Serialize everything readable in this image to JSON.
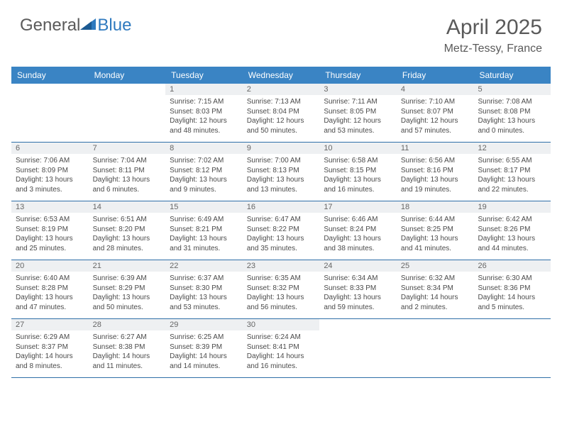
{
  "brand": {
    "part1": "General",
    "part2": "Blue"
  },
  "title": "April 2025",
  "location": "Metz-Tessy, France",
  "colors": {
    "header_bg": "#3a84c4",
    "header_text": "#ffffff",
    "daynum_bg": "#eef0f2",
    "row_border": "#2f6fa8",
    "body_text": "#4a4a4a",
    "title_text": "#5a5a5a",
    "brand_blue": "#2f7abf"
  },
  "day_headers": [
    "Sunday",
    "Monday",
    "Tuesday",
    "Wednesday",
    "Thursday",
    "Friday",
    "Saturday"
  ],
  "weeks": [
    [
      {
        "num": "",
        "sunrise": "",
        "sunset": "",
        "daylight": ""
      },
      {
        "num": "",
        "sunrise": "",
        "sunset": "",
        "daylight": ""
      },
      {
        "num": "1",
        "sunrise": "Sunrise: 7:15 AM",
        "sunset": "Sunset: 8:03 PM",
        "daylight": "Daylight: 12 hours and 48 minutes."
      },
      {
        "num": "2",
        "sunrise": "Sunrise: 7:13 AM",
        "sunset": "Sunset: 8:04 PM",
        "daylight": "Daylight: 12 hours and 50 minutes."
      },
      {
        "num": "3",
        "sunrise": "Sunrise: 7:11 AM",
        "sunset": "Sunset: 8:05 PM",
        "daylight": "Daylight: 12 hours and 53 minutes."
      },
      {
        "num": "4",
        "sunrise": "Sunrise: 7:10 AM",
        "sunset": "Sunset: 8:07 PM",
        "daylight": "Daylight: 12 hours and 57 minutes."
      },
      {
        "num": "5",
        "sunrise": "Sunrise: 7:08 AM",
        "sunset": "Sunset: 8:08 PM",
        "daylight": "Daylight: 13 hours and 0 minutes."
      }
    ],
    [
      {
        "num": "6",
        "sunrise": "Sunrise: 7:06 AM",
        "sunset": "Sunset: 8:09 PM",
        "daylight": "Daylight: 13 hours and 3 minutes."
      },
      {
        "num": "7",
        "sunrise": "Sunrise: 7:04 AM",
        "sunset": "Sunset: 8:11 PM",
        "daylight": "Daylight: 13 hours and 6 minutes."
      },
      {
        "num": "8",
        "sunrise": "Sunrise: 7:02 AM",
        "sunset": "Sunset: 8:12 PM",
        "daylight": "Daylight: 13 hours and 9 minutes."
      },
      {
        "num": "9",
        "sunrise": "Sunrise: 7:00 AM",
        "sunset": "Sunset: 8:13 PM",
        "daylight": "Daylight: 13 hours and 13 minutes."
      },
      {
        "num": "10",
        "sunrise": "Sunrise: 6:58 AM",
        "sunset": "Sunset: 8:15 PM",
        "daylight": "Daylight: 13 hours and 16 minutes."
      },
      {
        "num": "11",
        "sunrise": "Sunrise: 6:56 AM",
        "sunset": "Sunset: 8:16 PM",
        "daylight": "Daylight: 13 hours and 19 minutes."
      },
      {
        "num": "12",
        "sunrise": "Sunrise: 6:55 AM",
        "sunset": "Sunset: 8:17 PM",
        "daylight": "Daylight: 13 hours and 22 minutes."
      }
    ],
    [
      {
        "num": "13",
        "sunrise": "Sunrise: 6:53 AM",
        "sunset": "Sunset: 8:19 PM",
        "daylight": "Daylight: 13 hours and 25 minutes."
      },
      {
        "num": "14",
        "sunrise": "Sunrise: 6:51 AM",
        "sunset": "Sunset: 8:20 PM",
        "daylight": "Daylight: 13 hours and 28 minutes."
      },
      {
        "num": "15",
        "sunrise": "Sunrise: 6:49 AM",
        "sunset": "Sunset: 8:21 PM",
        "daylight": "Daylight: 13 hours and 31 minutes."
      },
      {
        "num": "16",
        "sunrise": "Sunrise: 6:47 AM",
        "sunset": "Sunset: 8:22 PM",
        "daylight": "Daylight: 13 hours and 35 minutes."
      },
      {
        "num": "17",
        "sunrise": "Sunrise: 6:46 AM",
        "sunset": "Sunset: 8:24 PM",
        "daylight": "Daylight: 13 hours and 38 minutes."
      },
      {
        "num": "18",
        "sunrise": "Sunrise: 6:44 AM",
        "sunset": "Sunset: 8:25 PM",
        "daylight": "Daylight: 13 hours and 41 minutes."
      },
      {
        "num": "19",
        "sunrise": "Sunrise: 6:42 AM",
        "sunset": "Sunset: 8:26 PM",
        "daylight": "Daylight: 13 hours and 44 minutes."
      }
    ],
    [
      {
        "num": "20",
        "sunrise": "Sunrise: 6:40 AM",
        "sunset": "Sunset: 8:28 PM",
        "daylight": "Daylight: 13 hours and 47 minutes."
      },
      {
        "num": "21",
        "sunrise": "Sunrise: 6:39 AM",
        "sunset": "Sunset: 8:29 PM",
        "daylight": "Daylight: 13 hours and 50 minutes."
      },
      {
        "num": "22",
        "sunrise": "Sunrise: 6:37 AM",
        "sunset": "Sunset: 8:30 PM",
        "daylight": "Daylight: 13 hours and 53 minutes."
      },
      {
        "num": "23",
        "sunrise": "Sunrise: 6:35 AM",
        "sunset": "Sunset: 8:32 PM",
        "daylight": "Daylight: 13 hours and 56 minutes."
      },
      {
        "num": "24",
        "sunrise": "Sunrise: 6:34 AM",
        "sunset": "Sunset: 8:33 PM",
        "daylight": "Daylight: 13 hours and 59 minutes."
      },
      {
        "num": "25",
        "sunrise": "Sunrise: 6:32 AM",
        "sunset": "Sunset: 8:34 PM",
        "daylight": "Daylight: 14 hours and 2 minutes."
      },
      {
        "num": "26",
        "sunrise": "Sunrise: 6:30 AM",
        "sunset": "Sunset: 8:36 PM",
        "daylight": "Daylight: 14 hours and 5 minutes."
      }
    ],
    [
      {
        "num": "27",
        "sunrise": "Sunrise: 6:29 AM",
        "sunset": "Sunset: 8:37 PM",
        "daylight": "Daylight: 14 hours and 8 minutes."
      },
      {
        "num": "28",
        "sunrise": "Sunrise: 6:27 AM",
        "sunset": "Sunset: 8:38 PM",
        "daylight": "Daylight: 14 hours and 11 minutes."
      },
      {
        "num": "29",
        "sunrise": "Sunrise: 6:25 AM",
        "sunset": "Sunset: 8:39 PM",
        "daylight": "Daylight: 14 hours and 14 minutes."
      },
      {
        "num": "30",
        "sunrise": "Sunrise: 6:24 AM",
        "sunset": "Sunset: 8:41 PM",
        "daylight": "Daylight: 14 hours and 16 minutes."
      },
      {
        "num": "",
        "sunrise": "",
        "sunset": "",
        "daylight": ""
      },
      {
        "num": "",
        "sunrise": "",
        "sunset": "",
        "daylight": ""
      },
      {
        "num": "",
        "sunrise": "",
        "sunset": "",
        "daylight": ""
      }
    ]
  ]
}
